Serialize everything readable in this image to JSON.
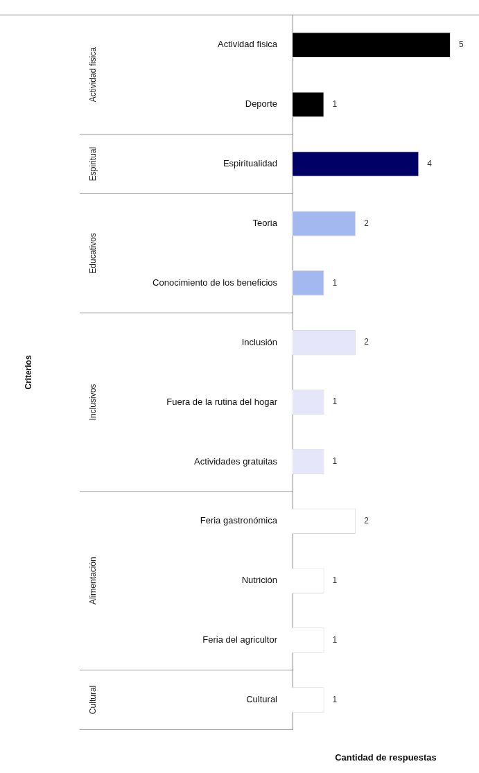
{
  "chart_data": {
    "type": "bar",
    "orientation": "horizontal",
    "xlabel": "Cantidad de respuestas",
    "categories": [
      "Actividad fisica",
      "Deporte",
      "Espiritualidad",
      "Teoria",
      "Conocimiento de los beneficios",
      "Inclusión",
      "Fuera de la rutina del hogar",
      "Actividades gratuitas",
      "Feria gastronómica",
      "Nutrición",
      "Feria del agricultor",
      "Cultural"
    ],
    "values": [
      5,
      1,
      4,
      2,
      1,
      2,
      1,
      1,
      2,
      1,
      1,
      1
    ],
    "colors": [
      "#000000",
      "#000000",
      "#000066",
      "#a4b8f0",
      "#a4b8f0",
      "#e6e6fa",
      "#e6e6fa",
      "#e6e6fa",
      "#ffffff",
      "#ffffff",
      "#ffffff",
      "#ffffff"
    ],
    "annotations": [
      "Criterios",
      "Actividad fisica",
      "Espiritual",
      "Educativos",
      "Inclusivos",
      "Alimentación",
      "Cultural"
    ],
    "data_labels": true,
    "grid": false,
    "legend": false
  }
}
